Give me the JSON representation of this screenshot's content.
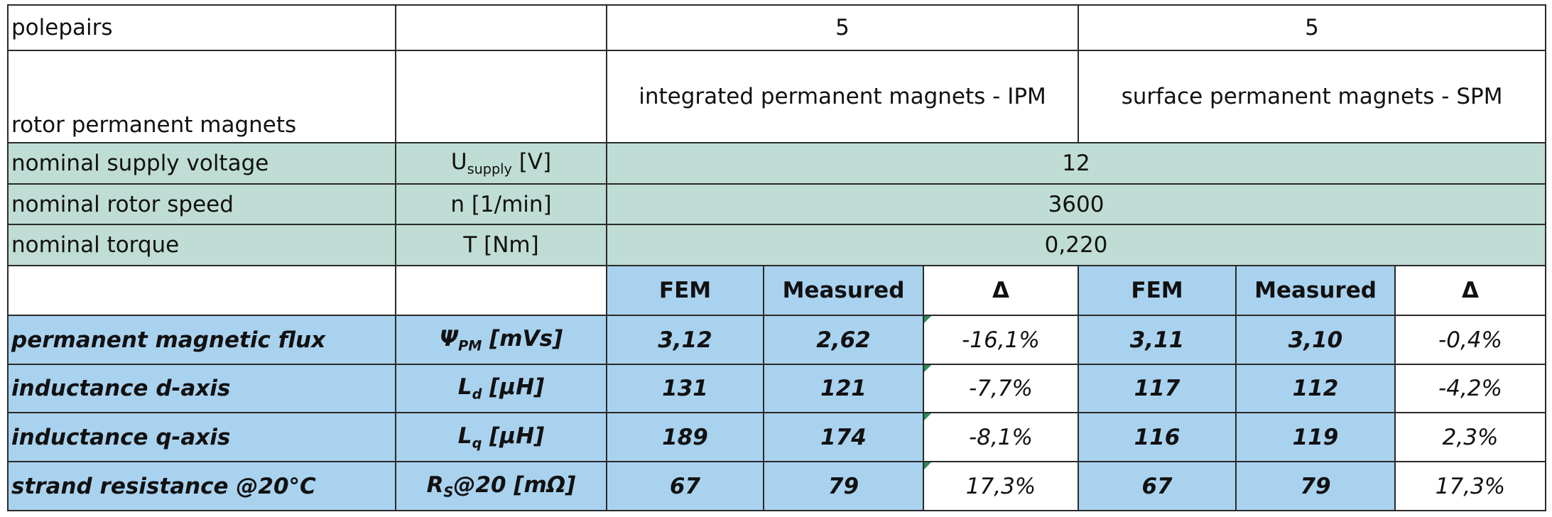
{
  "table": {
    "polepairs": {
      "label": "polepairs",
      "ipm": "5",
      "spm": "5"
    },
    "rotor": {
      "label": "rotor permanent magnets",
      "ipm": "integrated permanent magnets - IPM",
      "spm": "surface permanent magnets - SPM"
    },
    "voltage": {
      "label": "nominal supply voltage",
      "sym": "U",
      "sym_sub": "supply",
      "sym_unit": " [V]",
      "value": "12"
    },
    "speed": {
      "label": "nominal rotor speed",
      "sym": "n [1/min]",
      "value": "3600"
    },
    "torque": {
      "label": "nominal torque",
      "sym": "T [Nm]",
      "value": "0,220"
    },
    "headers": {
      "fem": "FEM",
      "measured": "Measured",
      "delta": "Δ"
    },
    "rows": [
      {
        "label": "permanent magnetic flux",
        "sym": "Ψ",
        "sym_sub": "PM",
        "sym_unit": " [mVs]",
        "ipm_fem": "3,12",
        "ipm_meas": "2,62",
        "ipm_delta": "-16,1%",
        "spm_fem": "3,11",
        "spm_meas": "3,10",
        "spm_delta": "-0,4%"
      },
      {
        "label": "inductance d-axis",
        "sym": "L",
        "sym_sub": "d",
        "sym_unit": " [µH]",
        "ipm_fem": "131",
        "ipm_meas": "121",
        "ipm_delta": "-7,7%",
        "spm_fem": "117",
        "spm_meas": "112",
        "spm_delta": "-4,2%"
      },
      {
        "label": "inductance q-axis",
        "sym": "L",
        "sym_sub": "q",
        "sym_unit": " [µH]",
        "ipm_fem": "189",
        "ipm_meas": "174",
        "ipm_delta": "-8,1%",
        "spm_fem": "116",
        "spm_meas": "119",
        "spm_delta": "2,3%"
      },
      {
        "label": "strand resistance @20°C",
        "sym": "R",
        "sym_sub": "S",
        "sym_unit": "@20 [mΩ]",
        "ipm_fem": "67",
        "ipm_meas": "79",
        "ipm_delta": "17,3%",
        "spm_fem": "67",
        "spm_meas": "79",
        "spm_delta": "17,3%"
      }
    ]
  }
}
